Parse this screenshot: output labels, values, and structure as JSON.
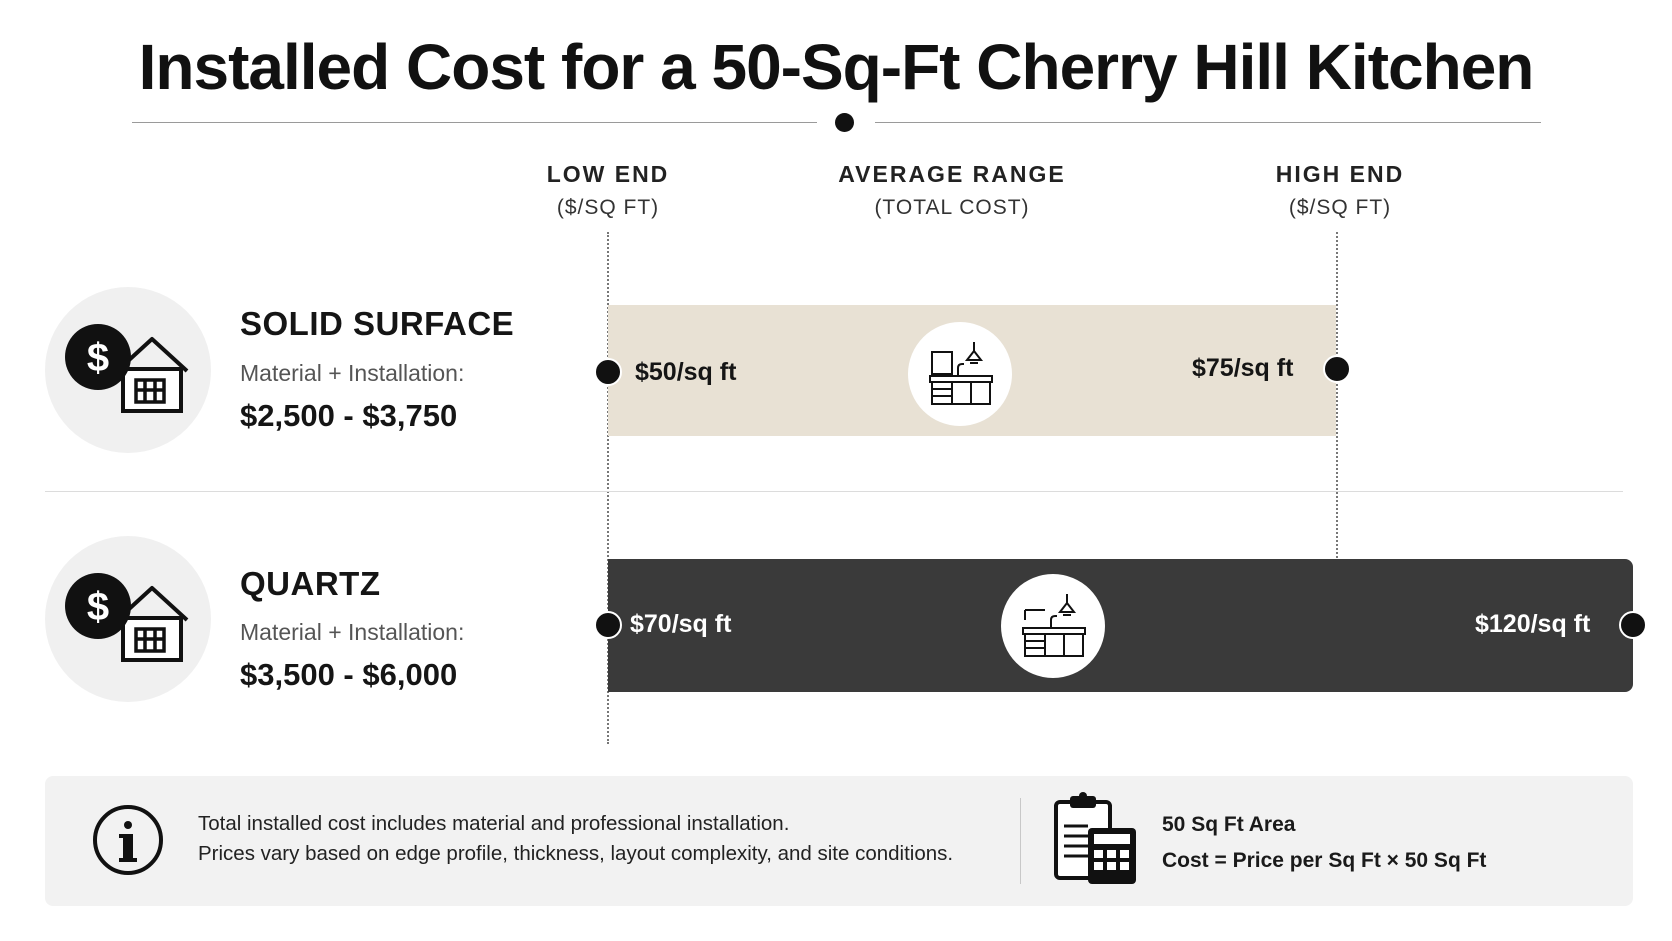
{
  "title": "Installed Cost for a 50-Sq-Ft Cherry Hill Kitchen",
  "columns": {
    "low": {
      "label": "LOW END",
      "sub": "($/SQ FT)"
    },
    "avg": {
      "label": "AVERAGE RANGE",
      "sub": "(TOTAL COST)"
    },
    "high": {
      "label": "HIGH END",
      "sub": "($/SQ FT)"
    }
  },
  "materials": [
    {
      "name": "SOLID SURFACE",
      "sub": "Material + Installation:",
      "range": "$2,500 - $3,750",
      "low_label": "$50/sq ft",
      "high_label": "$75/sq ft",
      "color": "#e8e1d4"
    },
    {
      "name": "QUARTZ",
      "sub": "Material + Installation:",
      "range": "$3,500 - $6,000",
      "low_label": "$70/sq ft",
      "high_label": "$120/sq ft",
      "color": "#3a3a3a"
    }
  ],
  "chart_data": {
    "type": "bar",
    "title": "Installed Cost for a 50-Sq-Ft Cherry Hill Kitchen",
    "categories": [
      "SOLID SURFACE",
      "QUARTZ"
    ],
    "series": [
      {
        "name": "LOW END",
        "values": [
          50,
          70
        ]
      },
      {
        "name": "HIGH END",
        "values": [
          75,
          120
        ]
      }
    ],
    "total_cost_range": [
      [
        2500,
        3750
      ],
      [
        3500,
        6000
      ]
    ],
    "unit": "$/sq ft"
  },
  "icons": {
    "material": "dollar-house-icon",
    "kitchen": "kitchen-icon",
    "info": "info-icon",
    "calculator": "clipboard-calculator-icon"
  },
  "footer": {
    "line1": "Total installed cost includes material and professional installation.",
    "line2": "Prices vary based on edge profile, thickness, layout complexity, and site conditions.",
    "area": "50 Sq Ft Area",
    "formula": "Cost = Price per Sq Ft × 50 Sq Ft"
  }
}
